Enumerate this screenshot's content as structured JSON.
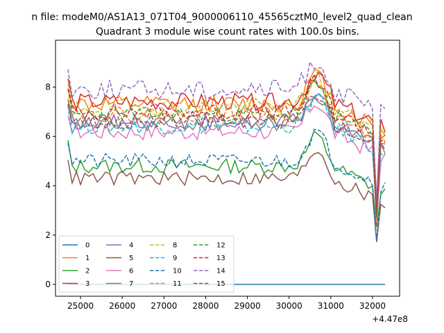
{
  "chart_data": {
    "type": "line",
    "suptitle": "n file: modeM0/AS1A13_071T04_9000006110_45565cztM0_level2_quad_clean",
    "title": "Quadrant 3 module wise count rates with 100.0s bins.",
    "x_offset_label": "+4.47e8",
    "xlim": [
      24400,
      32650
    ],
    "ylim": [
      -0.48,
      9.9
    ],
    "xticks": [
      25000,
      26000,
      27000,
      28000,
      29000,
      30000,
      31000,
      32000
    ],
    "xtick_labels": [
      "25000",
      "26000",
      "27000",
      "28000",
      "29000",
      "30000",
      "31000",
      "32000"
    ],
    "yticks": [
      0,
      2,
      4,
      6,
      8
    ],
    "ytick_labels": [
      "0",
      "2",
      "4",
      "6",
      "8"
    ],
    "legend_position": "lower left",
    "legend_ncol": 4,
    "series": [
      {
        "name": "0",
        "color": "#1f77b4",
        "dash": "solid",
        "base": 0.0,
        "amp": 0.0
      },
      {
        "name": "1",
        "color": "#ff7f0e",
        "dash": "solid",
        "base": 7.3,
        "amp": 0.35
      },
      {
        "name": "2",
        "color": "#2ca02c",
        "dash": "solid",
        "base": 4.8,
        "amp": 0.3
      },
      {
        "name": "3",
        "color": "#d62728",
        "dash": "solid",
        "base": 7.4,
        "amp": 0.35
      },
      {
        "name": "4",
        "color": "#9467bd",
        "dash": "solid",
        "base": 6.6,
        "amp": 0.3
      },
      {
        "name": "5",
        "color": "#8c564b",
        "dash": "solid",
        "base": 4.3,
        "amp": 0.3
      },
      {
        "name": "6",
        "color": "#e377c2",
        "dash": "solid",
        "base": 6.2,
        "amp": 0.35
      },
      {
        "name": "7",
        "color": "#7f7f7f",
        "dash": "solid",
        "base": 6.5,
        "amp": 0.3
      },
      {
        "name": "8",
        "color": "#bcbd22",
        "dash": "dashed",
        "base": 7.2,
        "amp": 0.35
      },
      {
        "name": "9",
        "color": "#17becf",
        "dash": "dashed",
        "base": 6.4,
        "amp": 0.3
      },
      {
        "name": "10",
        "color": "#1f77b4",
        "dash": "dashed",
        "base": 5.0,
        "amp": 0.3
      },
      {
        "name": "11",
        "color": "#ff7f0e",
        "dash": "dashed",
        "base": 6.9,
        "amp": 0.3
      },
      {
        "name": "12",
        "color": "#2ca02c",
        "dash": "dashed",
        "base": 6.9,
        "amp": 0.3
      },
      {
        "name": "13",
        "color": "#d62728",
        "dash": "dashed",
        "base": 7.0,
        "amp": 0.35
      },
      {
        "name": "14",
        "color": "#9467bd",
        "dash": "dashed",
        "base": 7.9,
        "amp": 0.4
      },
      {
        "name": "15",
        "color": "#8c564b",
        "dash": "dashed",
        "base": 6.6,
        "amp": 0.3
      }
    ],
    "x_start": 24700,
    "x_end": 32300,
    "x_step": 100,
    "dip_x": 32100
  }
}
